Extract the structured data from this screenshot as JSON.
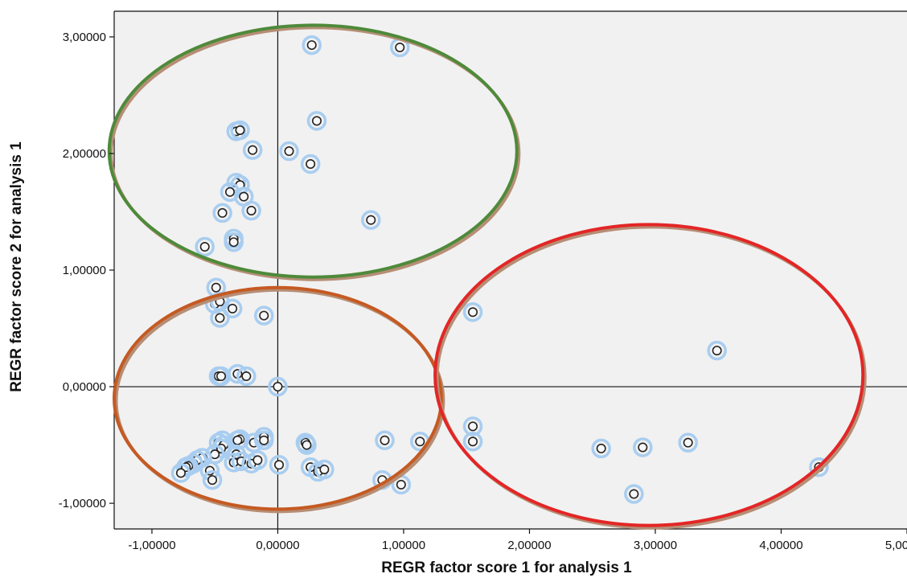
{
  "chart_data": {
    "type": "scatter",
    "title": "",
    "xlabel": "REGR factor score   1 for analysis 1",
    "ylabel": "REGR factor score   2 for analysis 1",
    "xlim": [
      -1.3,
      5.0
    ],
    "ylim": [
      -1.22,
      3.22
    ],
    "x_ticks": [
      -1,
      0,
      1,
      2,
      3,
      4,
      5
    ],
    "y_ticks": [
      -1,
      0,
      1,
      2,
      3
    ],
    "x_tick_labels": [
      "-1,00000",
      "0,00000",
      "1,00000",
      "2,00000",
      "3,00000",
      "4,00000",
      "5,00000"
    ],
    "y_tick_labels": [
      "-1,00000",
      "0,00000",
      "1,00000",
      "2,00000",
      "3,00000"
    ],
    "grid": false,
    "reference_lines": {
      "x": 0,
      "y": 0
    },
    "colors": {
      "plot_background": "#f1f1f1",
      "marker_halo": "#a8cdf0",
      "marker_edge": "#222222",
      "cluster_upper": "#4e8a3a",
      "cluster_lower": "#c55a22",
      "cluster_right": "#e32626",
      "cluster_shadow": "#b68e75"
    },
    "clusters": [
      {
        "name": "upper-cluster",
        "cx": 0.28,
        "cy": 2.02,
        "rx": 1.62,
        "ry": 1.08,
        "color": "#4e8a3a"
      },
      {
        "name": "lower-cluster",
        "cx": 0.0,
        "cy": -0.1,
        "rx": 1.3,
        "ry": 0.95,
        "color": "#c55a22"
      },
      {
        "name": "right-cluster",
        "cx": 2.95,
        "cy": 0.1,
        "rx": 1.7,
        "ry": 1.29,
        "color": "#e32626"
      }
    ],
    "points": [
      [
        0.27,
        2.93
      ],
      [
        0.97,
        2.91
      ],
      [
        0.31,
        2.28
      ],
      [
        -0.33,
        2.19
      ],
      [
        -0.3,
        2.2
      ],
      [
        -0.2,
        2.03
      ],
      [
        0.09,
        2.02
      ],
      [
        0.26,
        1.91
      ],
      [
        -0.33,
        1.75
      ],
      [
        -0.3,
        1.73
      ],
      [
        -0.38,
        1.67
      ],
      [
        -0.27,
        1.63
      ],
      [
        -0.44,
        1.49
      ],
      [
        -0.21,
        1.51
      ],
      [
        0.74,
        1.43
      ],
      [
        -0.35,
        1.27
      ],
      [
        -0.35,
        1.24
      ],
      [
        -0.58,
        1.2
      ],
      [
        -0.49,
        0.85
      ],
      [
        -0.5,
        0.71
      ],
      [
        -0.46,
        0.73
      ],
      [
        -0.36,
        0.67
      ],
      [
        -0.46,
        0.59
      ],
      [
        -0.11,
        0.61
      ],
      [
        -0.47,
        0.09
      ],
      [
        -0.45,
        0.09
      ],
      [
        -0.32,
        0.11
      ],
      [
        -0.25,
        0.09
      ],
      [
        0.0,
        0.0
      ],
      [
        1.55,
        0.64
      ],
      [
        3.49,
        0.31
      ],
      [
        -0.44,
        -0.46
      ],
      [
        -0.47,
        -0.48
      ],
      [
        -0.43,
        -0.5
      ],
      [
        -0.45,
        -0.53
      ],
      [
        -0.3,
        -0.45
      ],
      [
        -0.19,
        -0.48
      ],
      [
        -0.11,
        -0.43
      ],
      [
        -0.11,
        -0.46
      ],
      [
        -0.32,
        -0.46
      ],
      [
        -0.33,
        -0.58
      ],
      [
        -0.5,
        -0.58
      ],
      [
        -0.6,
        -0.61
      ],
      [
        -0.64,
        -0.63
      ],
      [
        -0.67,
        -0.66
      ],
      [
        -0.71,
        -0.68
      ],
      [
        -0.73,
        -0.69
      ],
      [
        -0.77,
        -0.74
      ],
      [
        -0.54,
        -0.72
      ],
      [
        -0.35,
        -0.65
      ],
      [
        -0.29,
        -0.64
      ],
      [
        -0.21,
        -0.66
      ],
      [
        -0.16,
        -0.63
      ],
      [
        0.01,
        -0.67
      ],
      [
        0.22,
        -0.48
      ],
      [
        0.23,
        -0.5
      ],
      [
        0.26,
        -0.69
      ],
      [
        0.32,
        -0.73
      ],
      [
        0.37,
        -0.71
      ],
      [
        -0.52,
        -0.8
      ],
      [
        0.85,
        -0.46
      ],
      [
        1.13,
        -0.47
      ],
      [
        0.83,
        -0.8
      ],
      [
        0.98,
        -0.84
      ],
      [
        1.55,
        -0.34
      ],
      [
        1.55,
        -0.47
      ],
      [
        2.57,
        -0.53
      ],
      [
        2.9,
        -0.52
      ],
      [
        3.26,
        -0.48
      ],
      [
        2.83,
        -0.92
      ],
      [
        4.3,
        -0.69
      ]
    ]
  }
}
